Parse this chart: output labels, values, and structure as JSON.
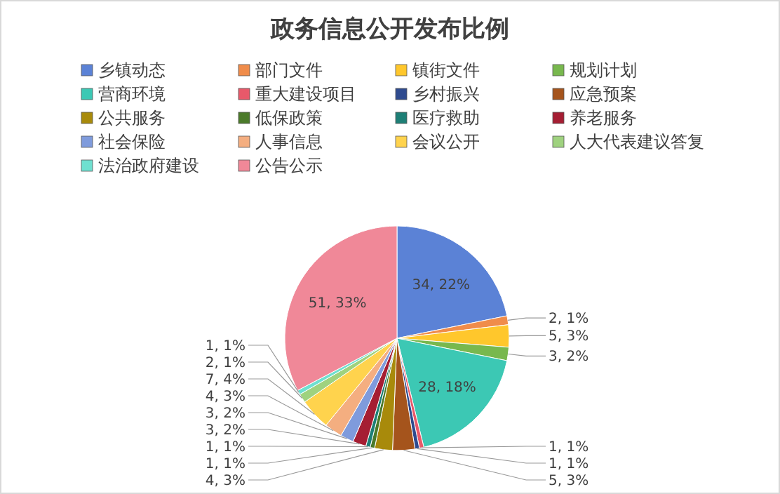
{
  "chart_data": {
    "type": "pie",
    "title": "政务信息公开发布比例",
    "categories": [
      "乡镇动态",
      "部门文件",
      "镇街文件",
      "规划计划",
      "营商环境",
      "重大建设项目",
      "乡村振兴",
      "应急预案",
      "公共服务",
      "低保政策",
      "医疗救助",
      "养老服务",
      "社会保险",
      "人事信息",
      "会议公开",
      "人大代表建议答复",
      "法治政府建设",
      "公告公示"
    ],
    "values": [
      34,
      2,
      5,
      3,
      28,
      1,
      1,
      5,
      4,
      1,
      1,
      3,
      3,
      4,
      7,
      2,
      1,
      51
    ],
    "colors": [
      "#5b82d6",
      "#f08c4a",
      "#ffc72c",
      "#78b84e",
      "#3cc8b4",
      "#e8596a",
      "#2f4b8f",
      "#a5541c",
      "#a88a0b",
      "#4b7a2a",
      "#1e7f76",
      "#a51e33",
      "#7f9bdc",
      "#f4ae80",
      "#ffd34d",
      "#9fd27f",
      "#6fe0d0",
      "#f08898"
    ],
    "value_labels": [
      "34, 22%",
      "2, 1%",
      "5, 3%",
      "3, 2%",
      "28, 18%",
      "1, 1%",
      "1, 1%",
      "5, 3%",
      "4, 3%",
      "1, 1%",
      "1, 1%",
      "3, 2%",
      "3, 2%",
      "4, 3%",
      "7, 4%",
      "2, 1%",
      "1, 1%",
      "51, 33%"
    ],
    "legend": "top"
  }
}
